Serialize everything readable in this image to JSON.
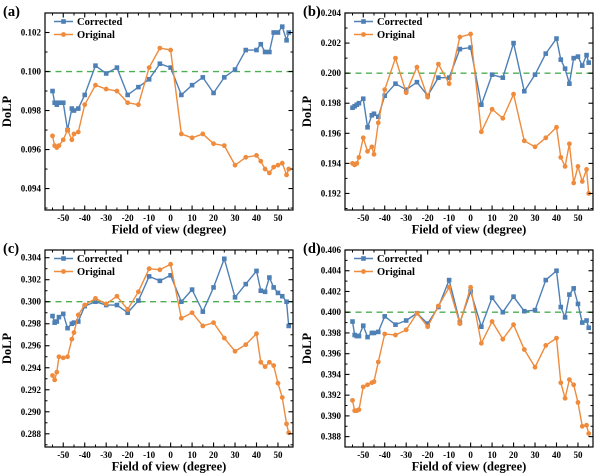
{
  "figure": {
    "background": "#ffffff",
    "axis_color": "#000000",
    "ref_line_color": "#4caf50",
    "legend_labels": [
      "Corrected",
      "Original"
    ],
    "series_colors": {
      "corrected": "#4e80b6",
      "original": "#ef8b3c"
    }
  },
  "chart_data": [
    {
      "type": "line",
      "panel_label": "(a)",
      "xlabel": "Field of view (degree)",
      "ylabel": "DoLP",
      "legend_position": "top-left",
      "grid": false,
      "xlim": [
        -58.5,
        57
      ],
      "ylim": [
        0.0929,
        0.103
      ],
      "x_major_ticks": [
        -50,
        -40,
        -30,
        -20,
        -10,
        0,
        10,
        20,
        30,
        40,
        50
      ],
      "x_minor_step": 5,
      "y_major_ticks": [
        0.094,
        0.096,
        0.098,
        0.1,
        0.102
      ],
      "y_minor_step": 0.001,
      "y_tick_decimals": 3,
      "ref_line": 0.1,
      "x": [
        -55,
        -54,
        -53,
        -52,
        -50,
        -48,
        -46,
        -45,
        -43,
        -40,
        -35,
        -30,
        -25,
        -20,
        -15,
        -10,
        -5,
        0,
        5,
        10,
        15,
        20,
        25,
        30,
        35,
        40,
        42,
        44,
        46,
        48,
        50,
        52,
        54,
        55
      ],
      "series": [
        {
          "name": "Corrected",
          "marker": "square",
          "color": "#4e80b6",
          "values": [
            0.099,
            0.0984,
            0.0983,
            0.0984,
            0.0984,
            0.097,
            0.0981,
            0.098,
            0.0981,
            0.0988,
            0.1003,
            0.0999,
            0.1002,
            0.0988,
            0.0992,
            0.0996,
            0.1004,
            0.1002,
            0.0988,
            0.0993,
            0.0997,
            0.0989,
            0.0997,
            0.1001,
            0.1011,
            0.1011,
            0.1014,
            0.101,
            0.101,
            0.102,
            0.102,
            0.1023,
            0.1016,
            0.102
          ]
        },
        {
          "name": "Original",
          "marker": "circle",
          "color": "#ef8b3c",
          "values": [
            0.0967,
            0.0962,
            0.0961,
            0.0962,
            0.0965,
            0.097,
            0.0965,
            0.0968,
            0.0969,
            0.0983,
            0.0993,
            0.0991,
            0.099,
            0.0984,
            0.0983,
            0.1002,
            0.1012,
            0.1011,
            0.0968,
            0.0966,
            0.0968,
            0.0963,
            0.0962,
            0.0952,
            0.0956,
            0.0957,
            0.0954,
            0.095,
            0.0948,
            0.0951,
            0.0952,
            0.0953,
            0.0947,
            0.095
          ]
        }
      ]
    },
    {
      "type": "line",
      "panel_label": "(b)",
      "xlabel": "Field of view (degree)",
      "ylabel": "DoLP",
      "legend_position": "top-left",
      "grid": false,
      "xlim": [
        -58.5,
        57
      ],
      "ylim": [
        0.1909,
        0.204
      ],
      "x_major_ticks": [
        -50,
        -40,
        -30,
        -20,
        -10,
        0,
        10,
        20,
        30,
        40,
        50
      ],
      "x_minor_step": 5,
      "y_major_ticks": [
        0.192,
        0.194,
        0.196,
        0.198,
        0.2,
        0.202,
        0.204
      ],
      "y_minor_step": 0.001,
      "y_tick_decimals": 3,
      "ref_line": 0.2,
      "x": [
        -55,
        -54,
        -53,
        -52,
        -50,
        -48,
        -46,
        -45,
        -43,
        -40,
        -35,
        -30,
        -25,
        -20,
        -15,
        -10,
        -5,
        0,
        5,
        10,
        15,
        20,
        25,
        30,
        35,
        40,
        42,
        44,
        46,
        48,
        50,
        52,
        54,
        55
      ],
      "series": [
        {
          "name": "Corrected",
          "marker": "square",
          "color": "#4e80b6",
          "values": [
            0.1977,
            0.1978,
            0.1979,
            0.198,
            0.1983,
            0.1964,
            0.1972,
            0.1973,
            0.1971,
            0.1985,
            0.1993,
            0.1989,
            0.1994,
            0.1985,
            0.1997,
            0.1997,
            0.2016,
            0.2017,
            0.1979,
            0.1999,
            0.1997,
            0.202,
            0.1988,
            0.1999,
            0.2013,
            0.2023,
            0.2009,
            0.2003,
            0.1993,
            0.201,
            0.2011,
            0.2005,
            0.2012,
            0.2007
          ]
        },
        {
          "name": "Original",
          "marker": "circle",
          "color": "#ef8b3c",
          "values": [
            0.194,
            0.1939,
            0.194,
            0.1944,
            0.1957,
            0.1948,
            0.1951,
            0.1946,
            0.1967,
            0.1989,
            0.201,
            0.1987,
            0.2004,
            0.1984,
            0.2006,
            0.1993,
            0.2024,
            0.2026,
            0.1961,
            0.1976,
            0.197,
            0.1986,
            0.1955,
            0.1951,
            0.1957,
            0.1964,
            0.1944,
            0.1938,
            0.1953,
            0.1927,
            0.1938,
            0.1928,
            0.1936,
            0.192
          ]
        }
      ]
    },
    {
      "type": "line",
      "panel_label": "(c)",
      "xlabel": "Field of view (degree)",
      "ylabel": "DoLP",
      "legend_position": "top-left",
      "grid": false,
      "xlim": [
        -58.5,
        57
      ],
      "ylim": [
        0.2868,
        0.3047
      ],
      "x_major_ticks": [
        -50,
        -40,
        -30,
        -20,
        -10,
        0,
        10,
        20,
        30,
        40,
        50
      ],
      "x_minor_step": 5,
      "y_major_ticks": [
        0.288,
        0.29,
        0.292,
        0.294,
        0.296,
        0.298,
        0.3,
        0.302,
        0.304
      ],
      "y_minor_step": 0.001,
      "y_tick_decimals": 3,
      "ref_line": 0.3,
      "x": [
        -55,
        -54,
        -53,
        -52,
        -50,
        -48,
        -46,
        -45,
        -43,
        -40,
        -35,
        -30,
        -25,
        -20,
        -15,
        -10,
        -5,
        0,
        5,
        10,
        15,
        20,
        25,
        30,
        35,
        40,
        42,
        44,
        46,
        48,
        50,
        52,
        54,
        55
      ],
      "series": [
        {
          "name": "Corrected",
          "marker": "square",
          "color": "#4e80b6",
          "values": [
            0.2987,
            0.2981,
            0.2982,
            0.2986,
            0.2989,
            0.2976,
            0.298,
            0.2981,
            0.2982,
            0.2996,
            0.3,
            0.2997,
            0.2997,
            0.299,
            0.3001,
            0.3023,
            0.3019,
            0.3024,
            0.3,
            0.3011,
            0.2991,
            0.3013,
            0.3039,
            0.3004,
            0.3016,
            0.3028,
            0.301,
            0.3009,
            0.3022,
            0.3013,
            0.3008,
            0.3005,
            0.3,
            0.2978
          ]
        },
        {
          "name": "Original",
          "marker": "circle",
          "color": "#ef8b3c",
          "values": [
            0.2933,
            0.2929,
            0.2936,
            0.295,
            0.2949,
            0.295,
            0.2966,
            0.2972,
            0.2988,
            0.2997,
            0.3003,
            0.2998,
            0.3005,
            0.2993,
            0.3009,
            0.303,
            0.3029,
            0.3034,
            0.2985,
            0.299,
            0.2978,
            0.2981,
            0.2967,
            0.2955,
            0.2961,
            0.2971,
            0.2945,
            0.2941,
            0.2945,
            0.2942,
            0.2926,
            0.2913,
            0.2889,
            0.2881
          ]
        }
      ]
    },
    {
      "type": "line",
      "panel_label": "(d)",
      "xlabel": "Field of view (degree)",
      "ylabel": "DoLP",
      "legend_position": "top-left",
      "grid": false,
      "xlim": [
        -58.5,
        57
      ],
      "ylim": [
        0.387,
        0.406
      ],
      "x_major_ticks": [
        -50,
        -40,
        -30,
        -20,
        -10,
        0,
        10,
        20,
        30,
        40,
        50
      ],
      "x_minor_step": 5,
      "y_major_ticks": [
        0.388,
        0.39,
        0.392,
        0.394,
        0.396,
        0.398,
        0.4,
        0.402,
        0.404,
        0.406
      ],
      "y_minor_step": 0.001,
      "y_tick_decimals": 3,
      "ref_line": 0.4,
      "x": [
        -55,
        -54,
        -53,
        -52,
        -50,
        -48,
        -46,
        -45,
        -43,
        -40,
        -35,
        -30,
        -25,
        -20,
        -15,
        -10,
        -5,
        0,
        5,
        10,
        15,
        20,
        25,
        30,
        35,
        40,
        42,
        44,
        46,
        48,
        50,
        52,
        54,
        55
      ],
      "series": [
        {
          "name": "Corrected",
          "marker": "square",
          "color": "#4e80b6",
          "values": [
            0.3991,
            0.3978,
            0.3977,
            0.3977,
            0.3987,
            0.3976,
            0.398,
            0.398,
            0.3981,
            0.3996,
            0.3988,
            0.3992,
            0.3999,
            0.3989,
            0.4005,
            0.4031,
            0.399,
            0.402,
            0.3986,
            0.4014,
            0.4,
            0.4015,
            0.4001,
            0.4002,
            0.4031,
            0.404,
            0.4005,
            0.3995,
            0.4017,
            0.4023,
            0.4008,
            0.399,
            0.3992,
            0.3985
          ]
        },
        {
          "name": "Original",
          "marker": "circle",
          "color": "#ef8b3c",
          "values": [
            0.3915,
            0.3905,
            0.3905,
            0.3906,
            0.3928,
            0.393,
            0.3932,
            0.3933,
            0.3952,
            0.3979,
            0.3978,
            0.3983,
            0.3999,
            0.3986,
            0.4006,
            0.4024,
            0.3989,
            0.4024,
            0.397,
            0.3991,
            0.3974,
            0.3988,
            0.3964,
            0.3947,
            0.3968,
            0.3975,
            0.3932,
            0.3917,
            0.3935,
            0.393,
            0.3913,
            0.389,
            0.3891,
            0.3883
          ]
        }
      ]
    }
  ]
}
